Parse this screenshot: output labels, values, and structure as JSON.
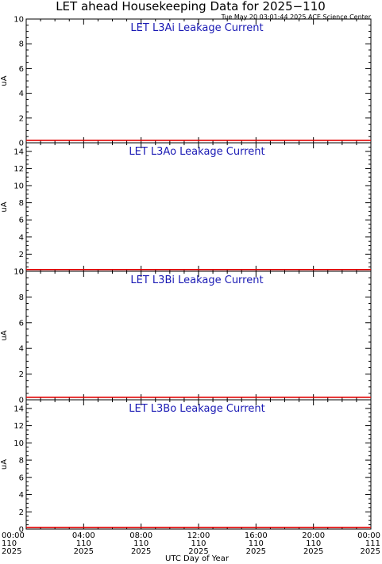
{
  "figure": {
    "title": "LET ahead Housekeeping Data for 2025−110",
    "timestamp": "Tue May 20 03:01:44 2025 ACE Science Center",
    "xlabel": "UTC Day of Year",
    "series_color": "#e00000",
    "title_color": "#1a1ab4"
  },
  "chart_data": [
    {
      "type": "line",
      "title": "LET L3Ai Leakage Current",
      "ylabel": "uA",
      "ylim": [
        0,
        10
      ],
      "yticks": [
        "0",
        "2",
        "4",
        "6",
        "8",
        "10"
      ],
      "yminor_step": 0.5,
      "x": [
        0,
        24
      ],
      "values": [
        0.2,
        0.2
      ]
    },
    {
      "type": "line",
      "title": "LET L3Ao Leakage Current",
      "ylabel": "uA",
      "ylim": [
        0,
        15
      ],
      "yticks": [
        "0",
        "2",
        "4",
        "6",
        "8",
        "10",
        "12",
        "14"
      ],
      "yminor_step": 0.5,
      "x": [
        0,
        24
      ],
      "values": [
        0.2,
        0.2
      ]
    },
    {
      "type": "line",
      "title": "LET L3Bi Leakage Current",
      "ylabel": "uA",
      "ylim": [
        0,
        10
      ],
      "yticks": [
        "0",
        "2",
        "4",
        "6",
        "8",
        "10"
      ],
      "yminor_step": 0.5,
      "x": [
        0,
        24
      ],
      "values": [
        0.2,
        0.2
      ]
    },
    {
      "type": "line",
      "title": "LET L3Bo Leakage Current",
      "ylabel": "uA",
      "ylim": [
        0,
        15
      ],
      "yticks": [
        "0",
        "2",
        "4",
        "6",
        "8",
        "10",
        "12",
        "14"
      ],
      "yminor_step": 0.5,
      "x": [
        0,
        24
      ],
      "values": [
        0.2,
        0.2
      ]
    }
  ],
  "xaxis": {
    "range_hours": [
      0,
      24
    ],
    "minor_step_hours": 1,
    "ticks": [
      {
        "hour": 0,
        "time": "00:00",
        "doy": "110",
        "year": "2025"
      },
      {
        "hour": 4,
        "time": "04:00",
        "doy": "110",
        "year": "2025"
      },
      {
        "hour": 8,
        "time": "08:00",
        "doy": "110",
        "year": "2025"
      },
      {
        "hour": 12,
        "time": "12:00",
        "doy": "110",
        "year": "2025"
      },
      {
        "hour": 16,
        "time": "16:00",
        "doy": "110",
        "year": "2025"
      },
      {
        "hour": 20,
        "time": "20:00",
        "doy": "110",
        "year": "2025"
      },
      {
        "hour": 24,
        "time": "00:00",
        "doy": "111",
        "year": "2025"
      }
    ]
  }
}
